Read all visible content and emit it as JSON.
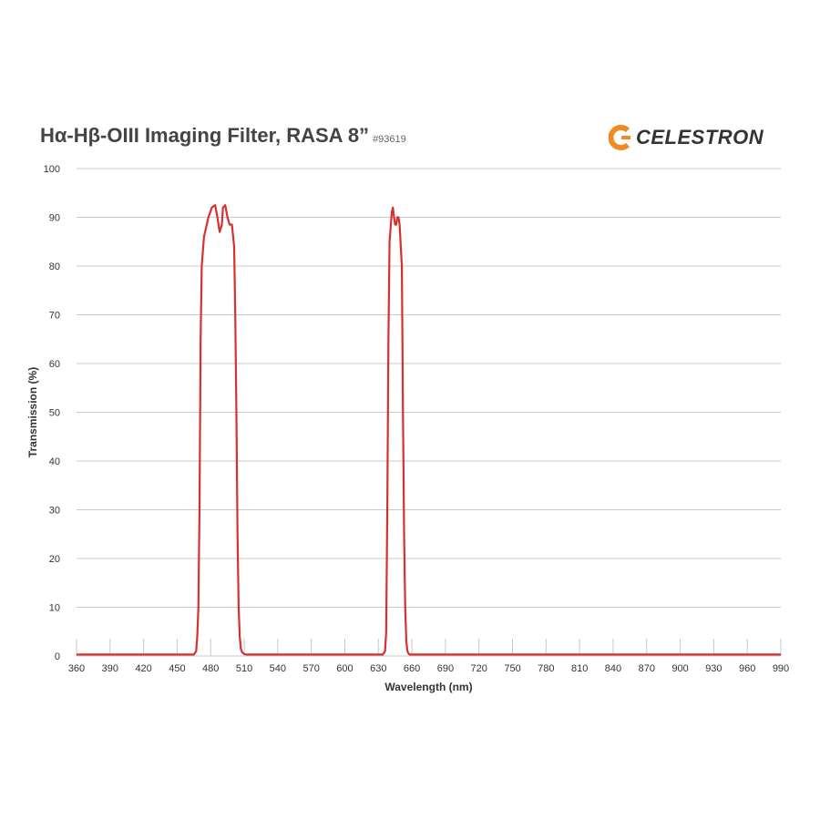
{
  "header": {
    "title": "Hα-Hβ-OIII Imaging Filter, RASA 8”",
    "part_number": "#93619",
    "logo_text": "CELESTRON"
  },
  "colors": {
    "series": "#d63031",
    "grid": "#c8c8c8",
    "logo_accent": "#f08a24"
  },
  "chart_data": {
    "type": "line",
    "title": "Hα-Hβ-OIII Imaging Filter, RASA 8”",
    "xlabel": "Wavelength (nm)",
    "ylabel": "Transmission (%)",
    "xlim": [
      360,
      990
    ],
    "ylim": [
      0,
      100
    ],
    "xticks": [
      360,
      390,
      420,
      450,
      480,
      510,
      540,
      570,
      600,
      630,
      660,
      690,
      720,
      750,
      780,
      810,
      840,
      870,
      900,
      930,
      960,
      990
    ],
    "yticks": [
      0,
      10,
      20,
      30,
      40,
      50,
      60,
      70,
      80,
      90,
      100
    ],
    "grid": "horizontal",
    "legend": "none",
    "series": [
      {
        "x": [
          360,
          465,
          467,
          468,
          469,
          470,
          471,
          472,
          474,
          476,
          478,
          481,
          484,
          486,
          488,
          490,
          491,
          493,
          495,
          497,
          499,
          501,
          502,
          503,
          504,
          505,
          506,
          507,
          508,
          510,
          512,
          515,
          530,
          600,
          630,
          634,
          636,
          637,
          638,
          639,
          640,
          642,
          643,
          644,
          645,
          646,
          647,
          648,
          649,
          651,
          652,
          653,
          654,
          655,
          656,
          657,
          658,
          659,
          660,
          661,
          662,
          664,
          668,
          700,
          990
        ],
        "y": [
          0.3,
          0.3,
          1,
          4,
          10,
          30,
          65,
          80,
          86,
          88,
          90,
          92,
          92.5,
          90,
          87,
          88.5,
          92,
          92.5,
          90,
          88.5,
          88.5,
          84,
          70,
          50,
          25,
          10,
          4,
          1.5,
          0.8,
          0.4,
          0.3,
          0.3,
          0.3,
          0.3,
          0.3,
          0.3,
          1,
          5,
          30,
          65,
          85,
          91,
          92,
          90,
          88.5,
          88.5,
          90,
          90,
          88.5,
          80,
          50,
          25,
          10,
          3,
          1,
          0.5,
          0.3,
          0.3,
          0.3,
          0.3,
          0.3,
          0.3,
          0.3,
          0.3,
          0.3
        ]
      }
    ]
  }
}
